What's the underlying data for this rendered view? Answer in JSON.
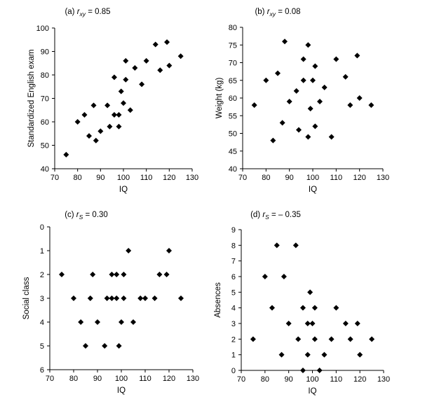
{
  "figure": {
    "panels": [
      {
        "id": "a",
        "title_prefix": "(a) ",
        "title_var": "r",
        "title_sub": "xy",
        "title_suffix": " = 0.85",
        "xlabel": "IQ",
        "ylabel": "Standardized English exam",
        "xticks": [
          "70",
          "80",
          "90",
          "100",
          "110",
          "120",
          "130"
        ],
        "yticks": [
          "40",
          "50",
          "60",
          "70",
          "80",
          "90",
          "100"
        ]
      },
      {
        "id": "b",
        "title_prefix": "(b) ",
        "title_var": "r",
        "title_sub": "xy",
        "title_suffix": " = 0.08",
        "xlabel": "IQ",
        "ylabel": "Weight (kg)",
        "xticks": [
          "70",
          "80",
          "90",
          "100",
          "110",
          "120",
          "130"
        ],
        "yticks": [
          "40",
          "45",
          "50",
          "55",
          "60",
          "65",
          "70",
          "75",
          "80"
        ]
      },
      {
        "id": "c",
        "title_prefix": "(c) ",
        "title_var": "r",
        "title_sub": "S",
        "title_suffix": " = 0.30",
        "xlabel": "IQ",
        "ylabel": "Social class",
        "xticks": [
          "70",
          "80",
          "90",
          "100",
          "110",
          "120",
          "130"
        ],
        "yticks": [
          "0",
          "1",
          "2",
          "3",
          "4",
          "5",
          "6"
        ]
      },
      {
        "id": "d",
        "title_prefix": "(d) ",
        "title_var": "r",
        "title_sub": "S",
        "title_suffix": " = – 0.35",
        "xlabel": "IQ",
        "ylabel": "Absences",
        "xticks": [
          "70",
          "80",
          "90",
          "100",
          "110",
          "120",
          "130"
        ],
        "yticks": [
          "0",
          "1",
          "2",
          "3",
          "4",
          "5",
          "6",
          "7",
          "8",
          "9"
        ]
      }
    ]
  },
  "chart_data": [
    {
      "type": "scatter",
      "title": "(a) r_xy = 0.85",
      "xlabel": "IQ",
      "ylabel": "Standardized English exam",
      "xlim": [
        70,
        130
      ],
      "ylim": [
        40,
        100
      ],
      "y_inverted": false,
      "grid": false,
      "marker": "diamond",
      "color": "#000000",
      "points": [
        [
          75,
          46
        ],
        [
          80,
          60
        ],
        [
          83,
          63
        ],
        [
          85,
          54
        ],
        [
          87,
          67
        ],
        [
          88,
          52
        ],
        [
          90,
          56
        ],
        [
          93,
          67
        ],
        [
          94,
          58
        ],
        [
          96,
          79
        ],
        [
          96,
          63
        ],
        [
          98,
          63
        ],
        [
          98,
          58
        ],
        [
          99,
          73
        ],
        [
          100,
          68
        ],
        [
          101,
          78
        ],
        [
          101,
          86
        ],
        [
          103,
          65
        ],
        [
          105,
          83
        ],
        [
          108,
          76
        ],
        [
          110,
          86
        ],
        [
          114,
          93
        ],
        [
          116,
          82
        ],
        [
          119,
          94
        ],
        [
          120,
          84
        ],
        [
          125,
          88
        ]
      ]
    },
    {
      "type": "scatter",
      "title": "(b) r_xy = 0.08",
      "xlabel": "IQ",
      "ylabel": "Weight (kg)",
      "xlim": [
        70,
        130
      ],
      "ylim": [
        40,
        80
      ],
      "y_inverted": false,
      "grid": false,
      "marker": "diamond",
      "color": "#000000",
      "points": [
        [
          75,
          58
        ],
        [
          80,
          65
        ],
        [
          83,
          48
        ],
        [
          85,
          67
        ],
        [
          87,
          53
        ],
        [
          88,
          76
        ],
        [
          90,
          59
        ],
        [
          93,
          62
        ],
        [
          94,
          51
        ],
        [
          96,
          71
        ],
        [
          96,
          65
        ],
        [
          98,
          75
        ],
        [
          98,
          49
        ],
        [
          99,
          57
        ],
        [
          100,
          65
        ],
        [
          101,
          69
        ],
        [
          101,
          52
        ],
        [
          103,
          59
        ],
        [
          105,
          63
        ],
        [
          108,
          49
        ],
        [
          110,
          71
        ],
        [
          114,
          66
        ],
        [
          116,
          58
        ],
        [
          119,
          72
        ],
        [
          120,
          60
        ],
        [
          125,
          58
        ]
      ]
    },
    {
      "type": "scatter",
      "title": "(c) r_S = 0.30",
      "xlabel": "IQ",
      "ylabel": "Social class",
      "xlim": [
        70,
        130
      ],
      "ylim": [
        0,
        6
      ],
      "y_inverted": true,
      "grid": false,
      "marker": "diamond",
      "color": "#000000",
      "points": [
        [
          75,
          2
        ],
        [
          80,
          3
        ],
        [
          83,
          4
        ],
        [
          85,
          5
        ],
        [
          87,
          3
        ],
        [
          88,
          2
        ],
        [
          90,
          4
        ],
        [
          93,
          5
        ],
        [
          94,
          3
        ],
        [
          96,
          3
        ],
        [
          96,
          2
        ],
        [
          98,
          3
        ],
        [
          98,
          2
        ],
        [
          99,
          5
        ],
        [
          100,
          4
        ],
        [
          101,
          3
        ],
        [
          101,
          2
        ],
        [
          103,
          1
        ],
        [
          105,
          4
        ],
        [
          108,
          3
        ],
        [
          110,
          3
        ],
        [
          114,
          3
        ],
        [
          116,
          2
        ],
        [
          119,
          2
        ],
        [
          120,
          1
        ],
        [
          125,
          3
        ]
      ]
    },
    {
      "type": "scatter",
      "title": "(d) r_S = – 0.35",
      "xlabel": "IQ",
      "ylabel": "Absences",
      "xlim": [
        70,
        130
      ],
      "ylim": [
        0,
        9
      ],
      "y_inverted": false,
      "grid": false,
      "marker": "diamond",
      "color": "#000000",
      "points": [
        [
          75,
          2
        ],
        [
          80,
          6
        ],
        [
          83,
          4
        ],
        [
          85,
          8
        ],
        [
          87,
          1
        ],
        [
          88,
          6
        ],
        [
          90,
          3
        ],
        [
          93,
          8
        ],
        [
          94,
          2
        ],
        [
          96,
          4
        ],
        [
          96,
          0
        ],
        [
          98,
          3
        ],
        [
          98,
          1
        ],
        [
          99,
          5
        ],
        [
          100,
          3
        ],
        [
          101,
          4
        ],
        [
          101,
          2
        ],
        [
          103,
          0
        ],
        [
          105,
          1
        ],
        [
          108,
          2
        ],
        [
          110,
          4
        ],
        [
          114,
          3
        ],
        [
          116,
          2
        ],
        [
          119,
          3
        ],
        [
          120,
          1
        ],
        [
          125,
          2
        ]
      ]
    }
  ]
}
